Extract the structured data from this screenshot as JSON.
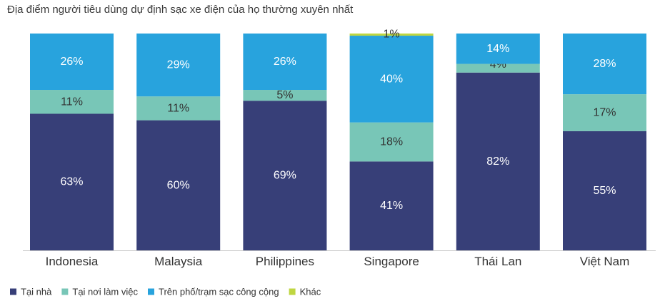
{
  "chart_data": {
    "type": "bar",
    "stacked": true,
    "title": "Địa điểm người tiêu dùng dự định sạc xe điện của họ thường xuyên nhất",
    "categories": [
      "Indonesia",
      "Malaysia",
      "Philippines",
      "Singapore",
      "Thái Lan",
      "Việt Nam"
    ],
    "series": [
      {
        "name": "Tại nhà",
        "color": "#373f78",
        "values": [
          63,
          60,
          69,
          41,
          82,
          55
        ],
        "labels": [
          "63%",
          "60%",
          "69%",
          "41%",
          "82%",
          "55%"
        ]
      },
      {
        "name": "Tại nơi làm việc",
        "color": "#78c6b7",
        "values": [
          11,
          11,
          5,
          18,
          4,
          17
        ],
        "labels": [
          "11%",
          "11%",
          "5%",
          "18%",
          "4%",
          "17%"
        ]
      },
      {
        "name": "Trên phố/trạm sạc công cộng",
        "color": "#28a3dd",
        "values": [
          26,
          29,
          26,
          40,
          14,
          28
        ],
        "labels": [
          "26%",
          "29%",
          "26%",
          "40%",
          "14%",
          "28%"
        ]
      },
      {
        "name": "Khác",
        "color": "#bfd641",
        "values": [
          0,
          0,
          0,
          1,
          0,
          0
        ],
        "labels": [
          "",
          "",
          "",
          "1%",
          "",
          ""
        ]
      }
    ],
    "ylim": [
      0,
      100
    ],
    "grid": false,
    "legend_position": "bottom-left"
  }
}
